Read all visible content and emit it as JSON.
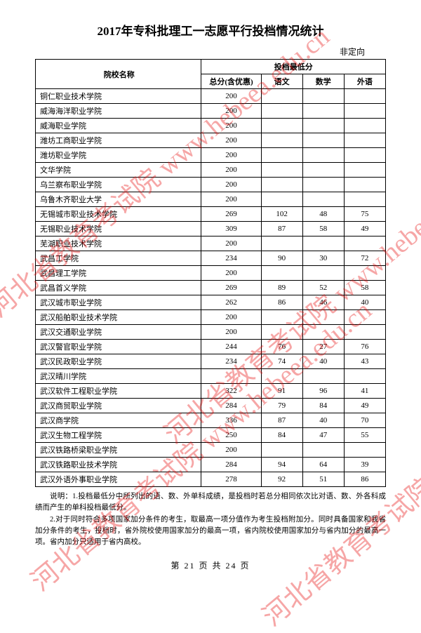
{
  "title": "2017年专科批理工一志愿平行投档情况统计",
  "subhead": "非定向",
  "header": {
    "school": "院校名称",
    "group": "投档最低分",
    "total": "总分(含优惠)",
    "yuwen": "语文",
    "shuxue": "数学",
    "waiyu": "外语"
  },
  "rows": [
    {
      "name": "铜仁职业技术学院",
      "total": "200",
      "yw": "",
      "sx": "",
      "wy": ""
    },
    {
      "name": "威海海洋职业学院",
      "total": "200",
      "yw": "",
      "sx": "",
      "wy": ""
    },
    {
      "name": "威海职业学院",
      "total": "200",
      "yw": "",
      "sx": "",
      "wy": ""
    },
    {
      "name": "潍坊工商职业学院",
      "total": "200",
      "yw": "",
      "sx": "",
      "wy": ""
    },
    {
      "name": "潍坊职业学院",
      "total": "200",
      "yw": "",
      "sx": "",
      "wy": ""
    },
    {
      "name": "文华学院",
      "total": "200",
      "yw": "",
      "sx": "",
      "wy": ""
    },
    {
      "name": "乌兰察布职业学院",
      "total": "200",
      "yw": "",
      "sx": "",
      "wy": ""
    },
    {
      "name": "乌鲁木齐职业大学",
      "total": "200",
      "yw": "",
      "sx": "",
      "wy": ""
    },
    {
      "name": "无锡城市职业技术学院",
      "total": "269",
      "yw": "102",
      "sx": "48",
      "wy": "75"
    },
    {
      "name": "无锡职业技术学院",
      "total": "309",
      "yw": "87",
      "sx": "58",
      "wy": "49"
    },
    {
      "name": "芜湖职业技术学院",
      "total": "200",
      "yw": "",
      "sx": "",
      "wy": ""
    },
    {
      "name": "武昌工学院",
      "total": "234",
      "yw": "90",
      "sx": "30",
      "wy": "72"
    },
    {
      "name": "武昌理工学院",
      "total": "200",
      "yw": "",
      "sx": "",
      "wy": ""
    },
    {
      "name": "武昌首义学院",
      "total": "269",
      "yw": "89",
      "sx": "52",
      "wy": "58"
    },
    {
      "name": "武汉城市职业学院",
      "total": "262",
      "yw": "86",
      "sx": "46",
      "wy": "40"
    },
    {
      "name": "武汉船舶职业技术学院",
      "total": "200",
      "yw": "",
      "sx": "",
      "wy": ""
    },
    {
      "name": "武汉交通职业学院",
      "total": "200",
      "yw": "",
      "sx": "",
      "wy": ""
    },
    {
      "name": "武汉警官职业学院",
      "total": "244",
      "yw": "76",
      "sx": "27",
      "wy": "76"
    },
    {
      "name": "武汉民政职业学院",
      "total": "234",
      "yw": "74",
      "sx": "40",
      "wy": "43"
    },
    {
      "name": "武汉晴川学院",
      "total": "",
      "yw": "",
      "sx": "",
      "wy": ""
    },
    {
      "name": "武汉软件工程职业学院",
      "total": "322",
      "yw": "91",
      "sx": "96",
      "wy": "41"
    },
    {
      "name": "武汉商贸职业学院",
      "total": "284",
      "yw": "79",
      "sx": "84",
      "wy": "49"
    },
    {
      "name": "武汉商学院",
      "total": "336",
      "yw": "87",
      "sx": "40",
      "wy": "70"
    },
    {
      "name": "武汉生物工程学院",
      "total": "250",
      "yw": "84",
      "sx": "47",
      "wy": "55"
    },
    {
      "name": "武汉铁路桥梁职业学院",
      "total": "200",
      "yw": "",
      "sx": "",
      "wy": ""
    },
    {
      "name": "武汉铁路职业技术学院",
      "total": "284",
      "yw": "94",
      "sx": "64",
      "wy": "39"
    },
    {
      "name": "武汉外语外事职业学院",
      "total": "278",
      "yw": "92",
      "sx": "51",
      "wy": "86"
    }
  ],
  "notes": {
    "line1": "说明：1.投档最低分中所列出的语、数、外单科成绩，是投档时若总分相同依次比对语、数、外各科成绩而产生的单科投档最低分。",
    "line2": "2.对于同时符合多项国家加分条件的考生，取最高一项分值作为考生投档附加分。同时具备国家和我省加分条件的考生，投档时，省外院校使用国家加分的最高一项，省内院校使用国家加分与省内加分的最高一项。省内加分只适用于省内高校。"
  },
  "pager": {
    "prefix": "第",
    "cur": "21",
    "mid": "页 共",
    "total": "24",
    "suffix": "页"
  },
  "watermark_cn": "河北省教育考试院",
  "watermark_en": "www.hebeea.edu.cn",
  "colors": {
    "watermark": "#e60000"
  }
}
